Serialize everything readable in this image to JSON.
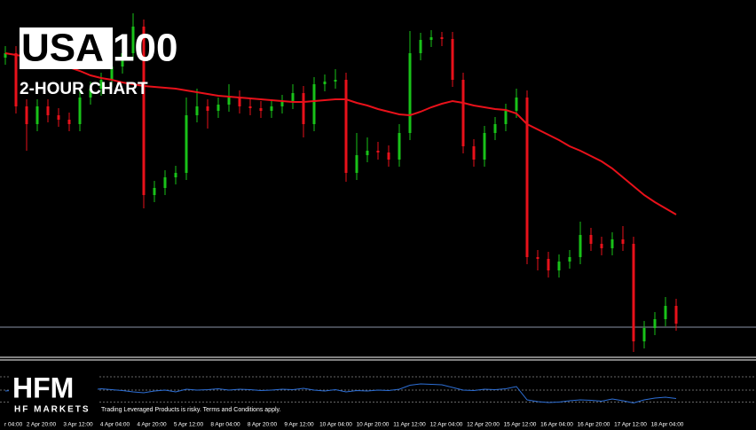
{
  "chart_data": {
    "type": "candlestick",
    "title_box": "USA",
    "title_rest": "100",
    "subtitle": "2-HOUR CHART",
    "up_color": "#19c219",
    "down_color": "#e8111a",
    "open": [
      335,
      340,
      280,
      260,
      280,
      270,
      265,
      260,
      290,
      300,
      310,
      325,
      340,
      370,
      180,
      188,
      200,
      205,
      270,
      280,
      275,
      282,
      290,
      280,
      278,
      275,
      280,
      285,
      295,
      260,
      305,
      308,
      310,
      205,
      225,
      230,
      228,
      220,
      250,
      340,
      355,
      358,
      356,
      310,
      235,
      220,
      250,
      260,
      275,
      290,
      110,
      108,
      95,
      105,
      110,
      135,
      125,
      120,
      130,
      125,
      15,
      30,
      40,
      55
    ],
    "high": [
      348,
      348,
      288,
      288,
      288,
      278,
      273,
      298,
      308,
      318,
      333,
      348,
      385,
      378,
      196,
      208,
      213,
      290,
      300,
      288,
      290,
      305,
      298,
      288,
      286,
      288,
      293,
      305,
      303,
      313,
      316,
      322,
      318,
      250,
      245,
      240,
      236,
      260,
      365,
      363,
      366,
      364,
      364,
      318,
      243,
      258,
      268,
      283,
      300,
      298,
      118,
      116,
      113,
      118,
      150,
      143,
      133,
      138,
      145,
      133,
      38,
      48,
      65,
      63
    ],
    "low": [
      327,
      272,
      230,
      252,
      262,
      257,
      252,
      252,
      282,
      292,
      302,
      317,
      332,
      165,
      172,
      180,
      192,
      197,
      262,
      255,
      267,
      274,
      272,
      270,
      267,
      267,
      272,
      277,
      245,
      252,
      297,
      300,
      195,
      197,
      217,
      220,
      212,
      212,
      242,
      332,
      347,
      348,
      302,
      227,
      212,
      212,
      242,
      252,
      267,
      102,
      95,
      87,
      87,
      97,
      102,
      117,
      112,
      112,
      117,
      3,
      7,
      22,
      32,
      27
    ],
    "close": [
      340,
      280,
      260,
      280,
      270,
      265,
      260,
      290,
      300,
      310,
      325,
      340,
      370,
      180,
      188,
      200,
      205,
      270,
      280,
      275,
      282,
      290,
      280,
      278,
      275,
      280,
      285,
      295,
      260,
      305,
      308,
      310,
      205,
      225,
      230,
      228,
      220,
      250,
      340,
      355,
      358,
      356,
      310,
      235,
      220,
      250,
      260,
      275,
      290,
      110,
      108,
      95,
      105,
      110,
      135,
      125,
      120,
      130,
      125,
      15,
      30,
      40,
      55,
      35
    ],
    "moving_average": {
      "color": "#e8111a",
      "values": [
        340,
        338,
        336,
        334,
        330,
        327,
        324,
        320,
        315,
        312,
        310,
        307,
        305,
        303,
        302,
        301,
        300,
        298,
        296,
        294,
        292,
        291,
        290,
        289,
        288,
        287,
        286,
        285,
        285,
        286,
        287,
        288,
        288,
        284,
        281,
        277,
        274,
        271,
        270,
        274,
        279,
        283,
        286,
        284,
        281,
        279,
        277,
        276,
        272,
        260,
        254,
        248,
        242,
        235,
        230,
        224,
        218,
        210,
        200,
        190,
        180,
        172,
        165,
        158
      ]
    },
    "ylim": [
      0,
      395
    ],
    "price_line": 31,
    "indicator": {
      "color": "#2d6fd6",
      "ylim": [
        0,
        100
      ],
      "levels": [
        74,
        44,
        17
      ],
      "values": [
        42,
        44,
        40,
        46,
        43,
        48,
        45,
        41,
        44,
        47,
        45,
        43,
        40,
        38,
        42,
        44,
        40,
        46,
        44,
        45,
        47,
        44,
        46,
        45,
        43,
        44,
        46,
        45,
        48,
        44,
        42,
        45,
        40,
        43,
        42,
        44,
        43,
        46,
        55,
        58,
        57,
        56,
        50,
        44,
        43,
        46,
        45,
        47,
        52,
        22,
        18,
        16,
        17,
        20,
        22,
        21,
        19,
        24,
        20,
        15,
        22,
        26,
        28,
        25
      ]
    },
    "x_labels": [
      "r 04:00",
      "2 Apr 20:00",
      "3 Apr 12:00",
      "4 Apr 04:00",
      "4 Apr 20:00",
      "5 Apr 12:00",
      "8 Apr 04:00",
      "8 Apr 20:00",
      "9 Apr 12:00",
      "10 Apr 04:00",
      "10 Apr 20:00",
      "11 Apr 12:00",
      "12 Apr 04:00",
      "12 Apr 20:00",
      "15 Apr 12:00",
      "16 Apr 04:00",
      "16 Apr 20:00",
      "17 Apr 12:00",
      "18 Apr 04:00"
    ],
    "brand": "HFM",
    "brand_sub": "HF MARKETS",
    "disclaimer": "Trading Leveraged Products is risky. Terms and Conditions apply."
  }
}
